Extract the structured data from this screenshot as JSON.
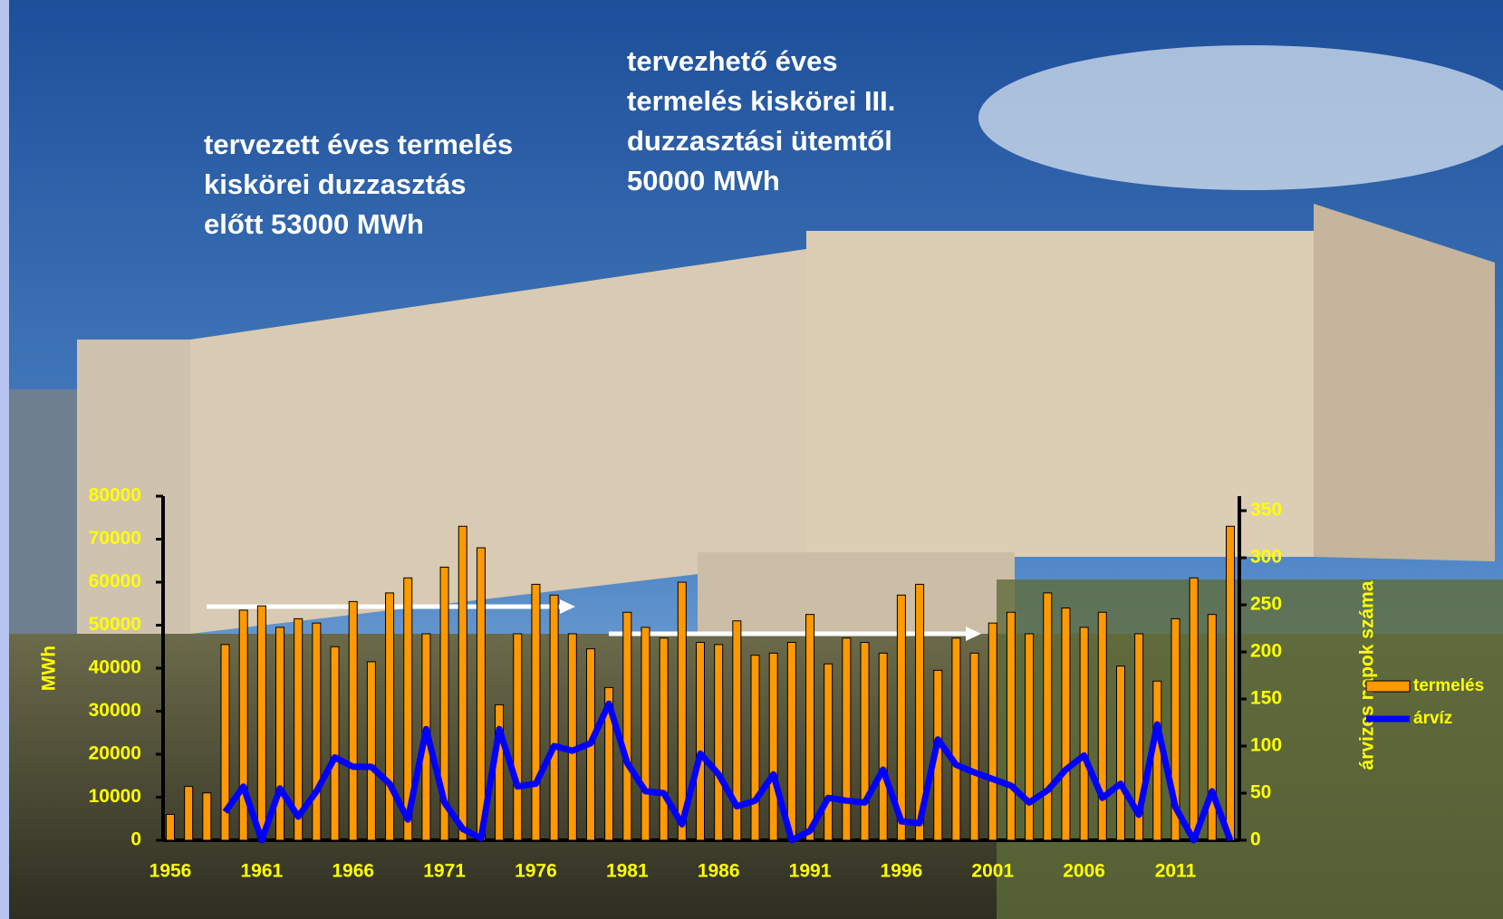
{
  "chart_data": {
    "type": "bar",
    "annotations": [
      [
        "tervezett éves termelés",
        "kiskörei duzzasztás",
        "előtt 53000 MWh"
      ],
      [
        "tervezhető éves",
        "termelés kiskörei III.",
        "duzzasztási ütemtől",
        "50000 MWh"
      ]
    ],
    "y_label": "MWh",
    "y2_label": "árvizes napok száma",
    "categories": [
      "1956",
      null,
      null,
      null,
      null,
      "1961",
      null,
      null,
      null,
      null,
      "1966",
      null,
      null,
      null,
      null,
      "1971",
      null,
      null,
      null,
      null,
      "1976",
      null,
      null,
      null,
      null,
      "1981",
      null,
      null,
      null,
      null,
      "1986",
      null,
      null,
      null,
      null,
      "1991",
      null,
      null,
      null,
      null,
      "1996",
      null,
      null,
      null,
      null,
      "2001",
      null,
      null,
      null,
      null,
      "2006",
      null,
      null,
      null,
      null,
      "2011",
      null,
      null,
      null
    ],
    "series": [
      {
        "name": "termelés",
        "color": "#ff9900",
        "values": [
          6000,
          12500,
          11000,
          45500,
          53500,
          54500,
          49500,
          51500,
          50500,
          45000,
          55500,
          41500,
          57500,
          61000,
          48000,
          63500,
          73000,
          68000,
          31500,
          48000,
          59500,
          57000,
          48000,
          44500,
          35500,
          53000,
          49500,
          47000,
          60000,
          46000,
          45500,
          51000,
          43000,
          43500,
          46000,
          52500,
          41000,
          47000,
          46000,
          43500,
          57000,
          59500,
          39500,
          47000,
          43500,
          50500,
          53000,
          48000,
          57500,
          54000,
          49500,
          53000,
          40500,
          48000,
          37000,
          51500,
          61000,
          52500,
          73000
        ]
      },
      {
        "name": "árvíz",
        "color": "#0000ff",
        "axis": "y2",
        "type": "line",
        "values": [
          null,
          null,
          null,
          30,
          57,
          0,
          55,
          25,
          52,
          88,
          78,
          78,
          60,
          22,
          118,
          40,
          12,
          2,
          118,
          57,
          60,
          100,
          95,
          103,
          145,
          82,
          52,
          50,
          17,
          92,
          70,
          36,
          42,
          70,
          0,
          10,
          45,
          42,
          40,
          75,
          20,
          18,
          107,
          80,
          72,
          65,
          58,
          40,
          53,
          75,
          90,
          45,
          60,
          27,
          123,
          35,
          0,
          52,
          0
        ]
      }
    ],
    "ylim": [
      0,
      80000
    ],
    "yticks": [
      0,
      10000,
      20000,
      30000,
      40000,
      50000,
      60000,
      70000,
      80000
    ],
    "y2lim": [
      0,
      350
    ],
    "y2ticks": [
      0,
      50,
      100,
      150,
      200,
      250,
      300,
      350
    ],
    "legend": "right"
  }
}
